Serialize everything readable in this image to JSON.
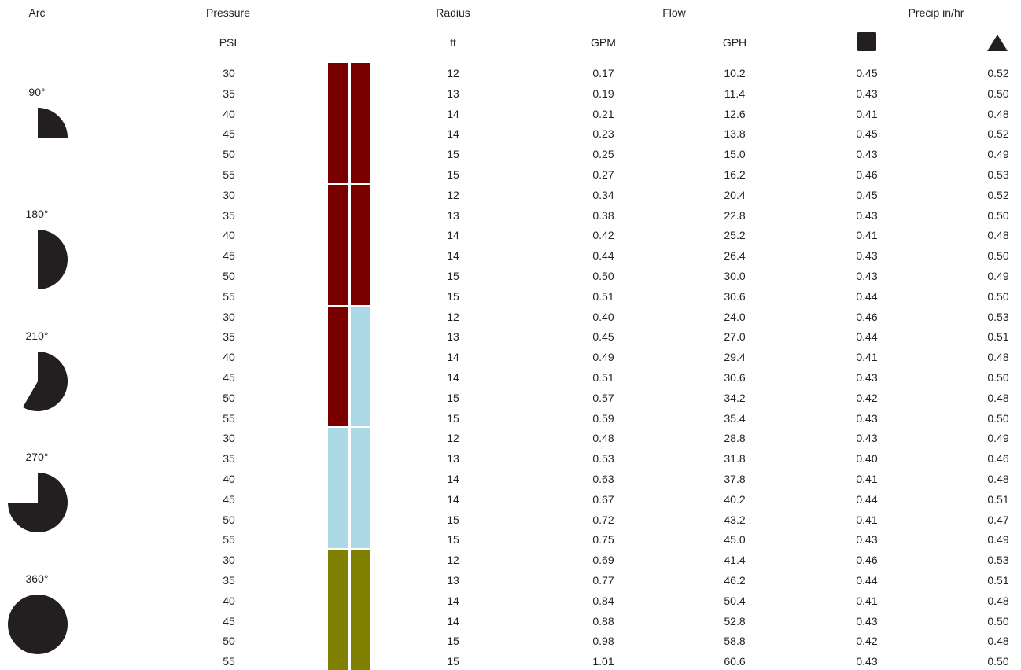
{
  "headers": {
    "arc": "Arc",
    "pressure": "Pressure",
    "radius": "Radius",
    "flow": "Flow",
    "precip": "Precip in/hr"
  },
  "units": {
    "pressure": "PSI",
    "radius": "ft",
    "gpm": "GPM",
    "gph": "GPH"
  },
  "symbols": {
    "square": "square-icon",
    "triangle": "triangle-icon"
  },
  "colors": {
    "dark_red": "#7a0000",
    "light_blue": "#add8e6",
    "olive": "#808000",
    "icon": "#231f20"
  },
  "groups": [
    {
      "arc": "90°",
      "icon": "quarter-arc-icon",
      "bar_colors": [
        "#7a0000",
        "#7a0000"
      ],
      "rows": [
        {
          "psi": "30",
          "ft": "12",
          "gpm": "0.17",
          "gph": "10.2",
          "sq": "0.45",
          "tri": "0.52"
        },
        {
          "psi": "35",
          "ft": "13",
          "gpm": "0.19",
          "gph": "11.4",
          "sq": "0.43",
          "tri": "0.50"
        },
        {
          "psi": "40",
          "ft": "14",
          "gpm": "0.21",
          "gph": "12.6",
          "sq": "0.41",
          "tri": "0.48"
        },
        {
          "psi": "45",
          "ft": "14",
          "gpm": "0.23",
          "gph": "13.8",
          "sq": "0.45",
          "tri": "0.52"
        },
        {
          "psi": "50",
          "ft": "15",
          "gpm": "0.25",
          "gph": "15.0",
          "sq": "0.43",
          "tri": "0.49"
        },
        {
          "psi": "55",
          "ft": "15",
          "gpm": "0.27",
          "gph": "16.2",
          "sq": "0.46",
          "tri": "0.53"
        }
      ]
    },
    {
      "arc": "180°",
      "icon": "half-arc-icon",
      "bar_colors": [
        "#7a0000",
        "#7a0000"
      ],
      "rows": [
        {
          "psi": "30",
          "ft": "12",
          "gpm": "0.34",
          "gph": "20.4",
          "sq": "0.45",
          "tri": "0.52"
        },
        {
          "psi": "35",
          "ft": "13",
          "gpm": "0.38",
          "gph": "22.8",
          "sq": "0.43",
          "tri": "0.50"
        },
        {
          "psi": "40",
          "ft": "14",
          "gpm": "0.42",
          "gph": "25.2",
          "sq": "0.41",
          "tri": "0.48"
        },
        {
          "psi": "45",
          "ft": "14",
          "gpm": "0.44",
          "gph": "26.4",
          "sq": "0.43",
          "tri": "0.50"
        },
        {
          "psi": "50",
          "ft": "15",
          "gpm": "0.50",
          "gph": "30.0",
          "sq": "0.43",
          "tri": "0.49"
        },
        {
          "psi": "55",
          "ft": "15",
          "gpm": "0.51",
          "gph": "30.6",
          "sq": "0.44",
          "tri": "0.50"
        }
      ]
    },
    {
      "arc": "210°",
      "icon": "210-arc-icon",
      "bar_colors": [
        "#7a0000",
        "#add8e6"
      ],
      "rows": [
        {
          "psi": "30",
          "ft": "12",
          "gpm": "0.40",
          "gph": "24.0",
          "sq": "0.46",
          "tri": "0.53"
        },
        {
          "psi": "35",
          "ft": "13",
          "gpm": "0.45",
          "gph": "27.0",
          "sq": "0.44",
          "tri": "0.51"
        },
        {
          "psi": "40",
          "ft": "14",
          "gpm": "0.49",
          "gph": "29.4",
          "sq": "0.41",
          "tri": "0.48"
        },
        {
          "psi": "45",
          "ft": "14",
          "gpm": "0.51",
          "gph": "30.6",
          "sq": "0.43",
          "tri": "0.50"
        },
        {
          "psi": "50",
          "ft": "15",
          "gpm": "0.57",
          "gph": "34.2",
          "sq": "0.42",
          "tri": "0.48"
        },
        {
          "psi": "55",
          "ft": "15",
          "gpm": "0.59",
          "gph": "35.4",
          "sq": "0.43",
          "tri": "0.50"
        }
      ]
    },
    {
      "arc": "270°",
      "icon": "three-quarter-arc-icon",
      "bar_colors": [
        "#add8e6",
        "#add8e6"
      ],
      "rows": [
        {
          "psi": "30",
          "ft": "12",
          "gpm": "0.48",
          "gph": "28.8",
          "sq": "0.43",
          "tri": "0.49"
        },
        {
          "psi": "35",
          "ft": "13",
          "gpm": "0.53",
          "gph": "31.8",
          "sq": "0.40",
          "tri": "0.46"
        },
        {
          "psi": "40",
          "ft": "14",
          "gpm": "0.63",
          "gph": "37.8",
          "sq": "0.41",
          "tri": "0.48"
        },
        {
          "psi": "45",
          "ft": "14",
          "gpm": "0.67",
          "gph": "40.2",
          "sq": "0.44",
          "tri": "0.51"
        },
        {
          "psi": "50",
          "ft": "15",
          "gpm": "0.72",
          "gph": "43.2",
          "sq": "0.41",
          "tri": "0.47"
        },
        {
          "psi": "55",
          "ft": "15",
          "gpm": "0.75",
          "gph": "45.0",
          "sq": "0.43",
          "tri": "0.49"
        }
      ]
    },
    {
      "arc": "360°",
      "icon": "full-circle-arc-icon",
      "bar_colors": [
        "#808000",
        "#808000"
      ],
      "rows": [
        {
          "psi": "30",
          "ft": "12",
          "gpm": "0.69",
          "gph": "41.4",
          "sq": "0.46",
          "tri": "0.53"
        },
        {
          "psi": "35",
          "ft": "13",
          "gpm": "0.77",
          "gph": "46.2",
          "sq": "0.44",
          "tri": "0.51"
        },
        {
          "psi": "40",
          "ft": "14",
          "gpm": "0.84",
          "gph": "50.4",
          "sq": "0.41",
          "tri": "0.48"
        },
        {
          "psi": "45",
          "ft": "14",
          "gpm": "0.88",
          "gph": "52.8",
          "sq": "0.43",
          "tri": "0.50"
        },
        {
          "psi": "50",
          "ft": "15",
          "gpm": "0.98",
          "gph": "58.8",
          "sq": "0.42",
          "tri": "0.48"
        },
        {
          "psi": "55",
          "ft": "15",
          "gpm": "1.01",
          "gph": "60.6",
          "sq": "0.43",
          "tri": "0.50"
        }
      ]
    }
  ]
}
